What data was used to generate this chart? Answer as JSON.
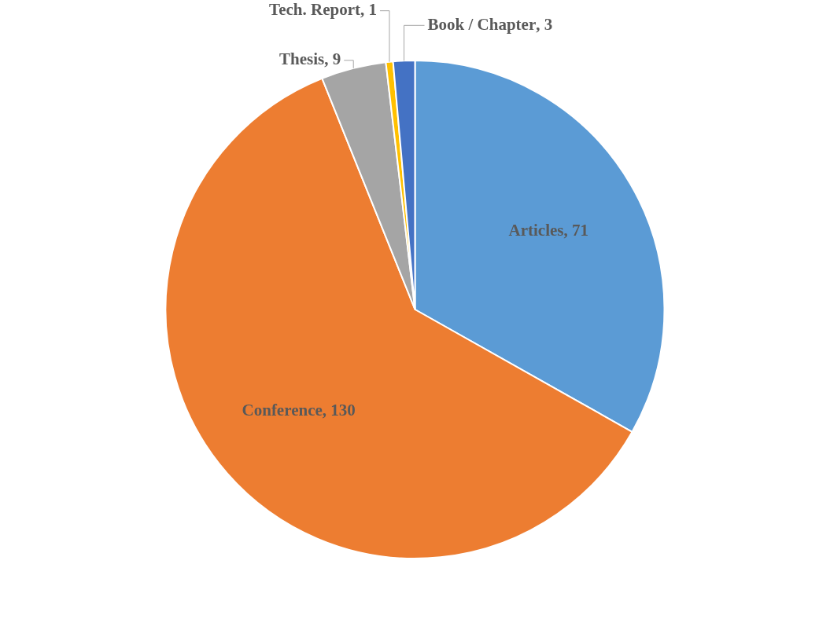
{
  "chart_data": {
    "type": "pie",
    "categories": [
      "Articles",
      "Conference",
      "Thesis",
      "Tech. Report",
      "Book / Chapter"
    ],
    "values": [
      71,
      130,
      9,
      1,
      3
    ],
    "value_labels": [
      ", 71",
      ", 130",
      ", 9",
      ", 1",
      ", 3"
    ],
    "colors": [
      "#5b9bd5",
      "#ed7d31",
      "#a5a5a5",
      "#ffc000",
      "#4472c4"
    ],
    "legend": false
  }
}
